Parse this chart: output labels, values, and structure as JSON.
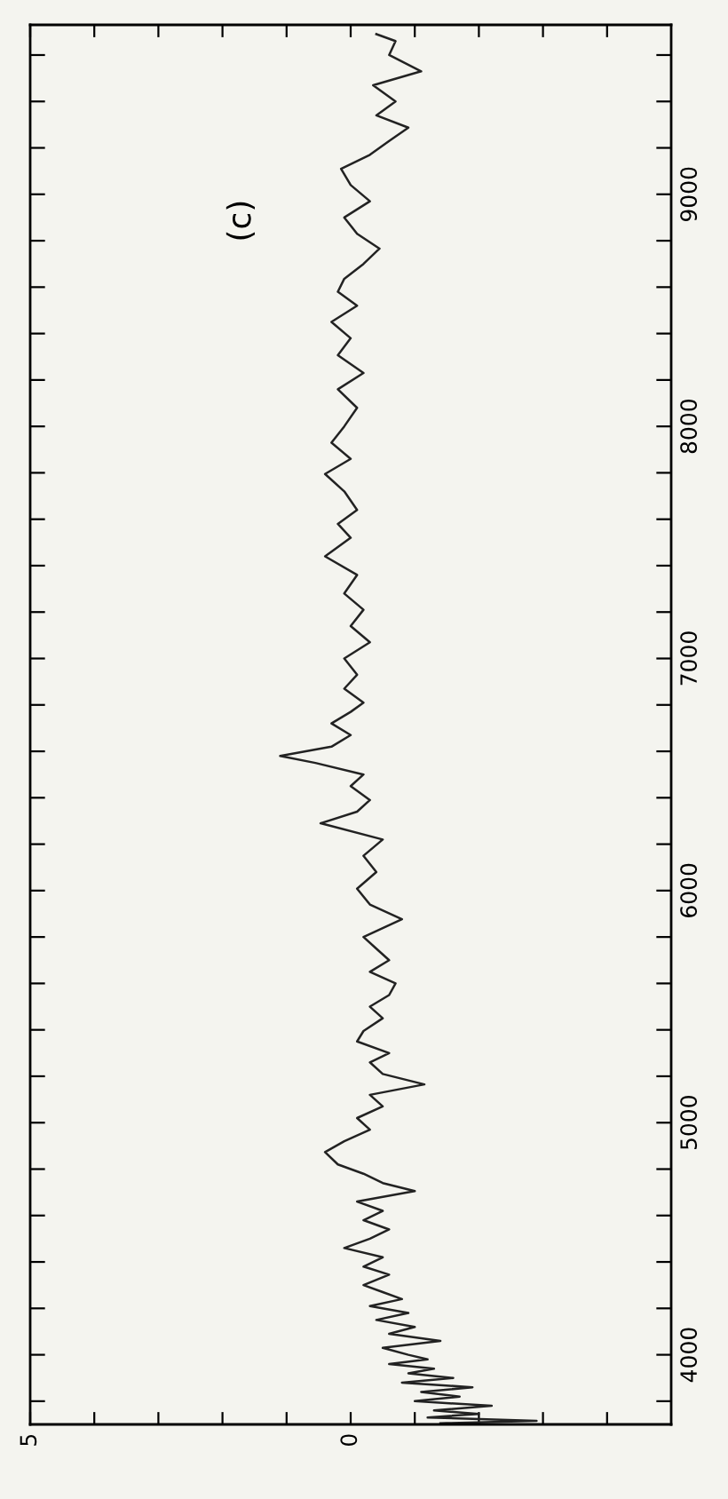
{
  "chart_data": {
    "type": "line",
    "annotations": [
      "(c)"
    ],
    "series": [
      {
        "color": "#222222",
        "x": [
          -1.4,
          -2.9,
          -1.2,
          -2.0,
          -1.3,
          -2.2,
          -1.0,
          -1.7,
          -1.1,
          -1.9,
          -0.8,
          -1.6,
          -0.9,
          -1.3,
          -0.6,
          -1.2,
          -0.9,
          -0.5,
          -1.4,
          -0.6,
          -1.0,
          -0.4,
          -0.9,
          -0.3,
          -0.8,
          -0.5,
          -0.2,
          -0.6,
          -0.2,
          -0.5,
          0.1,
          -0.3,
          -0.6,
          -0.2,
          -0.5,
          -0.1,
          -1.0,
          -0.5,
          -0.2,
          0.2,
          0.4,
          0.1,
          -0.3,
          -0.1,
          -0.5,
          -0.3,
          -1.15,
          -0.5,
          -0.3,
          -0.6,
          -0.1,
          -0.2,
          -0.5,
          -0.3,
          -0.6,
          -0.7,
          -0.3,
          -0.6,
          -0.4,
          -0.2,
          -0.8,
          -0.3,
          -0.1,
          -0.4,
          -0.2,
          -0.5,
          0.47,
          -0.1,
          -0.3,
          0.0,
          -0.2,
          0.55,
          1.1,
          0.3,
          0.0,
          0.3,
          0.0,
          -0.2,
          0.1,
          -0.1,
          0.1,
          -0.3,
          0.0,
          -0.2,
          0.1,
          -0.1,
          0.4,
          0.0,
          0.2,
          -0.1,
          0.1,
          0.4,
          0.0,
          0.3,
          0.1,
          -0.1,
          0.2,
          -0.2,
          0.2,
          0.0,
          0.3,
          -0.1,
          0.2,
          0.1,
          -0.2,
          -0.45,
          -0.1,
          0.1,
          -0.3,
          0.0,
          0.15,
          -0.3,
          -0.6,
          -0.9,
          -0.4,
          -0.7,
          -0.35,
          -1.1,
          -0.6,
          -0.7,
          -0.4
        ],
        "values": [
          3705,
          3715,
          3730,
          3745,
          3760,
          3780,
          3800,
          3820,
          3840,
          3860,
          3880,
          3900,
          3920,
          3940,
          3960,
          3980,
          4000,
          4030,
          4060,
          4090,
          4120,
          4150,
          4180,
          4210,
          4240,
          4270,
          4300,
          4345,
          4380,
          4420,
          4460,
          4500,
          4540,
          4580,
          4620,
          4660,
          4705,
          4740,
          4780,
          4820,
          4873,
          4920,
          4970,
          5020,
          5070,
          5120,
          5165,
          5210,
          5260,
          5300,
          5350,
          5395,
          5450,
          5500,
          5550,
          5600,
          5650,
          5700,
          5750,
          5800,
          5877,
          5940,
          6008,
          6080,
          6150,
          6220,
          6290,
          6340,
          6390,
          6450,
          6500,
          6550,
          6580,
          6620,
          6670,
          6720,
          6770,
          6810,
          6870,
          6930,
          7000,
          7070,
          7140,
          7210,
          7280,
          7360,
          7440,
          7520,
          7580,
          7640,
          7720,
          7795,
          7860,
          7930,
          8000,
          8080,
          8160,
          8230,
          8307,
          8380,
          8450,
          8520,
          8580,
          8636,
          8700,
          8766,
          8830,
          8900,
          8970,
          9040,
          9110,
          9170,
          9230,
          9287,
          9340,
          9400,
          9470,
          9530,
          9600,
          9660,
          9690
        ]
      }
    ],
    "xlim": [
      5,
      -5
    ],
    "xticks": [
      5,
      {
        "value": 4,
        "label": null
      },
      {
        "value": 3,
        "label": null
      },
      {
        "value": 2,
        "label": null
      },
      {
        "value": 1,
        "label": null
      },
      0,
      {
        "value": -1,
        "label": null
      },
      {
        "value": -2,
        "label": null
      },
      {
        "value": -3,
        "label": null
      },
      {
        "value": -4,
        "label": null
      }
    ],
    "ylim": [
      3700,
      9730
    ],
    "yticks": [
      {
        "value": 3800,
        "label": null
      },
      4000,
      {
        "value": 4200,
        "label": null
      },
      {
        "value": 4400,
        "label": null
      },
      {
        "value": 4600,
        "label": null
      },
      {
        "value": 4800,
        "label": null
      },
      5000,
      {
        "value": 5200,
        "label": null
      },
      {
        "value": 5400,
        "label": null
      },
      {
        "value": 5600,
        "label": null
      },
      {
        "value": 5800,
        "label": null
      },
      6000,
      {
        "value": 6200,
        "label": null
      },
      {
        "value": 6400,
        "label": null
      },
      {
        "value": 6600,
        "label": null
      },
      {
        "value": 6800,
        "label": null
      },
      7000,
      {
        "value": 7200,
        "label": null
      },
      {
        "value": 7400,
        "label": null
      },
      {
        "value": 7600,
        "label": null
      },
      {
        "value": 7800,
        "label": null
      },
      8000,
      {
        "value": 8200,
        "label": null
      },
      {
        "value": 8400,
        "label": null
      },
      {
        "value": 8600,
        "label": null
      },
      {
        "value": 8800,
        "label": null
      },
      9000,
      {
        "value": 9200,
        "label": null
      },
      {
        "value": 9400,
        "label": null
      },
      {
        "value": 9600,
        "label": null
      }
    ],
    "marker": "none",
    "line_style": "solid"
  }
}
